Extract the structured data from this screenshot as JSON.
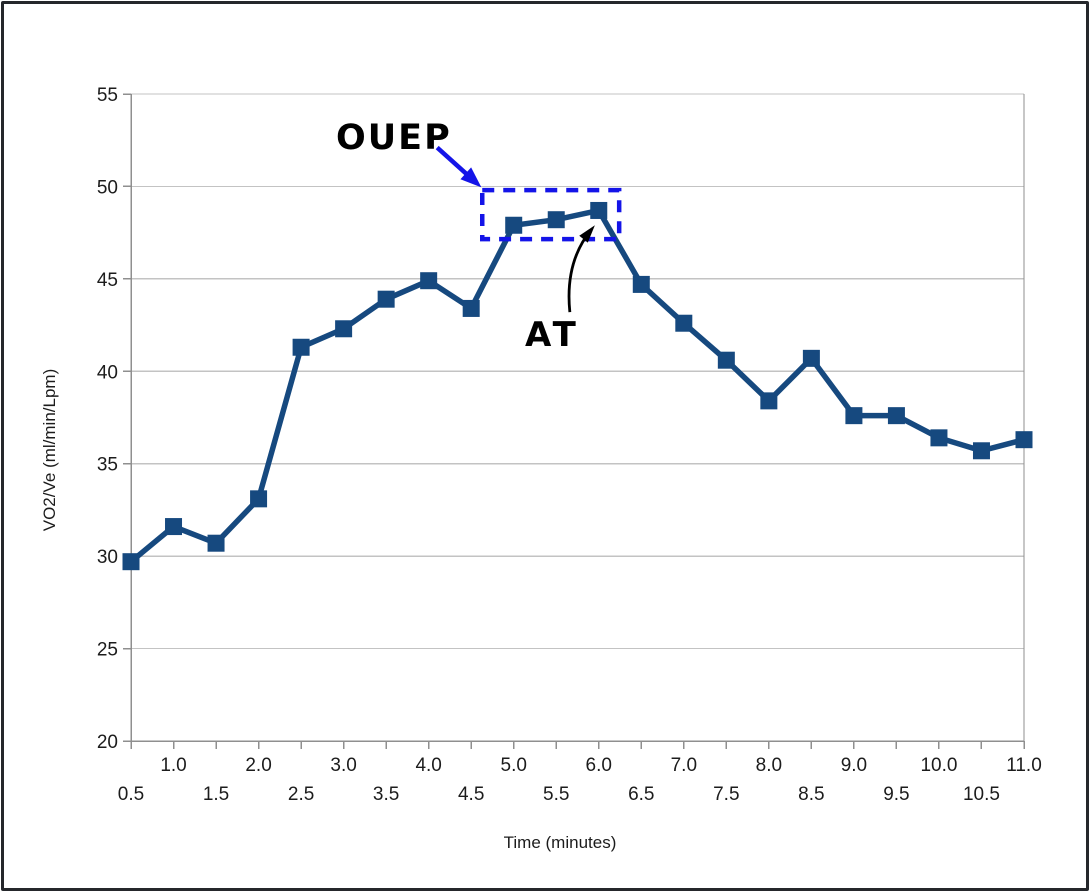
{
  "window": {
    "background_color": "#ffffff",
    "border_color": "#25272b"
  },
  "chart_data": {
    "type": "line",
    "title": "",
    "xlabel": "Time (minutes)",
    "ylabel": "VO2/Ve (ml/min/Lpm)",
    "x": [
      0.5,
      1.0,
      1.5,
      2.0,
      2.5,
      3.0,
      3.5,
      4.0,
      4.5,
      5.0,
      5.5,
      6.0,
      6.5,
      7.0,
      7.5,
      8.0,
      8.5,
      9.0,
      9.5,
      10.0,
      10.5,
      11.0
    ],
    "series": [
      {
        "name": "VO2/Ve",
        "values": [
          29.7,
          31.6,
          30.7,
          33.1,
          41.3,
          42.3,
          43.9,
          44.9,
          43.4,
          47.9,
          48.2,
          48.7,
          44.7,
          42.6,
          40.6,
          38.4,
          40.7,
          37.6,
          37.6,
          36.4,
          35.7,
          36.3
        ],
        "color": "#16497F",
        "marker": "square"
      }
    ],
    "xlim": [
      0.5,
      11.0
    ],
    "ylim": [
      20,
      55
    ],
    "yticks": [
      55,
      50,
      45,
      40,
      35,
      30,
      25,
      20
    ],
    "ytick_labels": [
      "55",
      "50",
      "45",
      "40",
      "35",
      "30",
      "25",
      "20"
    ],
    "xtick_labels_row1": [
      "1.0",
      "2.0",
      "3.0",
      "4.0",
      "5.0",
      "6.0",
      "7.0",
      "8.0",
      "9.0",
      "10.0",
      "11.0"
    ],
    "xtick_labels_row2": [
      "0.5",
      "1.5",
      "2.5",
      "3.5",
      "4.5",
      "5.5",
      "6.5",
      "7.5",
      "8.5",
      "9.5",
      "10.5"
    ],
    "grid": "horizontal",
    "grid_color": "#c3c3c3",
    "axis_color": "#8f8f8f",
    "legend": "none",
    "annotations": [
      {
        "id": "ouep",
        "label": "OUEP",
        "type": "dashed-box-with-arrow",
        "color": "#1414e8",
        "box_x": [
          4.63,
          6.24
        ],
        "box_y": [
          47.15,
          49.8
        ],
        "arrow_from_xy": [
          4.1,
          52.1
        ],
        "arrow_to_xy": [
          4.62,
          49.95
        ]
      },
      {
        "id": "at",
        "label": "AT",
        "type": "curved-arrow",
        "color": "#000000",
        "arrow_from_xy": [
          5.66,
          43.2
        ],
        "arrow_ctrl_xy": [
          5.6,
          45.9
        ],
        "arrow_to_xy": [
          5.91,
          47.65
        ]
      }
    ]
  }
}
